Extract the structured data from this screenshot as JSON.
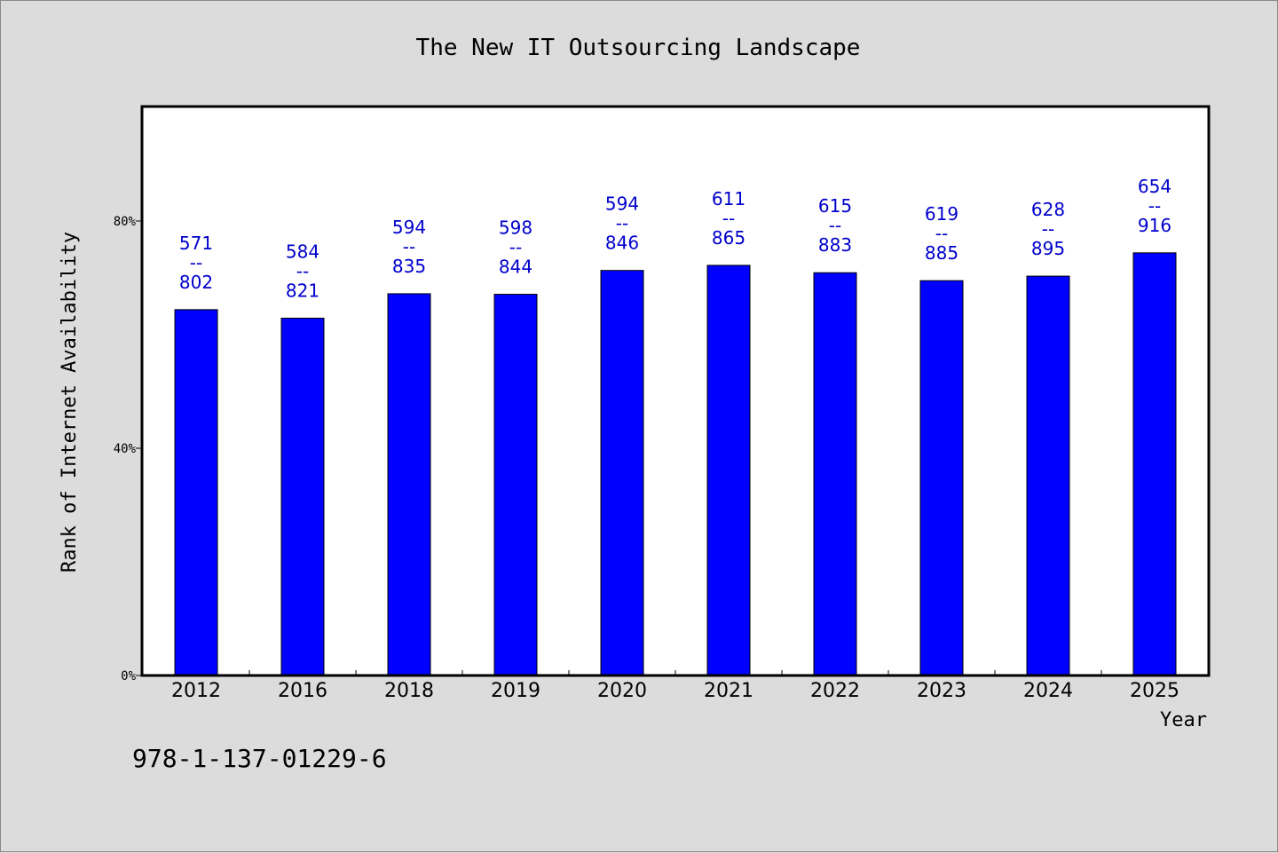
{
  "chart_data": {
    "type": "bar",
    "title": "The New IT Outsourcing Landscape",
    "xlabel": "Year",
    "ylabel": "Rank of Internet Availability",
    "categories": [
      "2012",
      "2016",
      "2018",
      "2019",
      "2020",
      "2021",
      "2022",
      "2023",
      "2024",
      "2025"
    ],
    "values": [
      64.4,
      62.9,
      67.2,
      67.1,
      71.3,
      72.2,
      70.9,
      69.5,
      70.3,
      74.4
    ],
    "value_unit": "%",
    "data_labels": [
      {
        "top": "571",
        "separator": "--",
        "bottom": "802"
      },
      {
        "top": "584",
        "separator": "--",
        "bottom": "821"
      },
      {
        "top": "594",
        "separator": "--",
        "bottom": "835"
      },
      {
        "top": "598",
        "separator": "--",
        "bottom": "844"
      },
      {
        "top": "594",
        "separator": "--",
        "bottom": "846"
      },
      {
        "top": "611",
        "separator": "--",
        "bottom": "865"
      },
      {
        "top": "615",
        "separator": "--",
        "bottom": "883"
      },
      {
        "top": "619",
        "separator": "--",
        "bottom": "885"
      },
      {
        "top": "628",
        "separator": "--",
        "bottom": "895"
      },
      {
        "top": "654",
        "separator": "--",
        "bottom": "916"
      }
    ],
    "ylim": [
      0,
      100
    ],
    "yticks": [
      0,
      40,
      80
    ],
    "ytick_labels": [
      "0%",
      "40%",
      "80%"
    ],
    "grid": false,
    "legend": "none",
    "bar_color": "#0000ff",
    "label_color": "#0000cc",
    "plot_background": "#ffffff",
    "page_background": "#dcdcdc"
  },
  "footer": {
    "isbn": "978-1-137-01229-6"
  }
}
